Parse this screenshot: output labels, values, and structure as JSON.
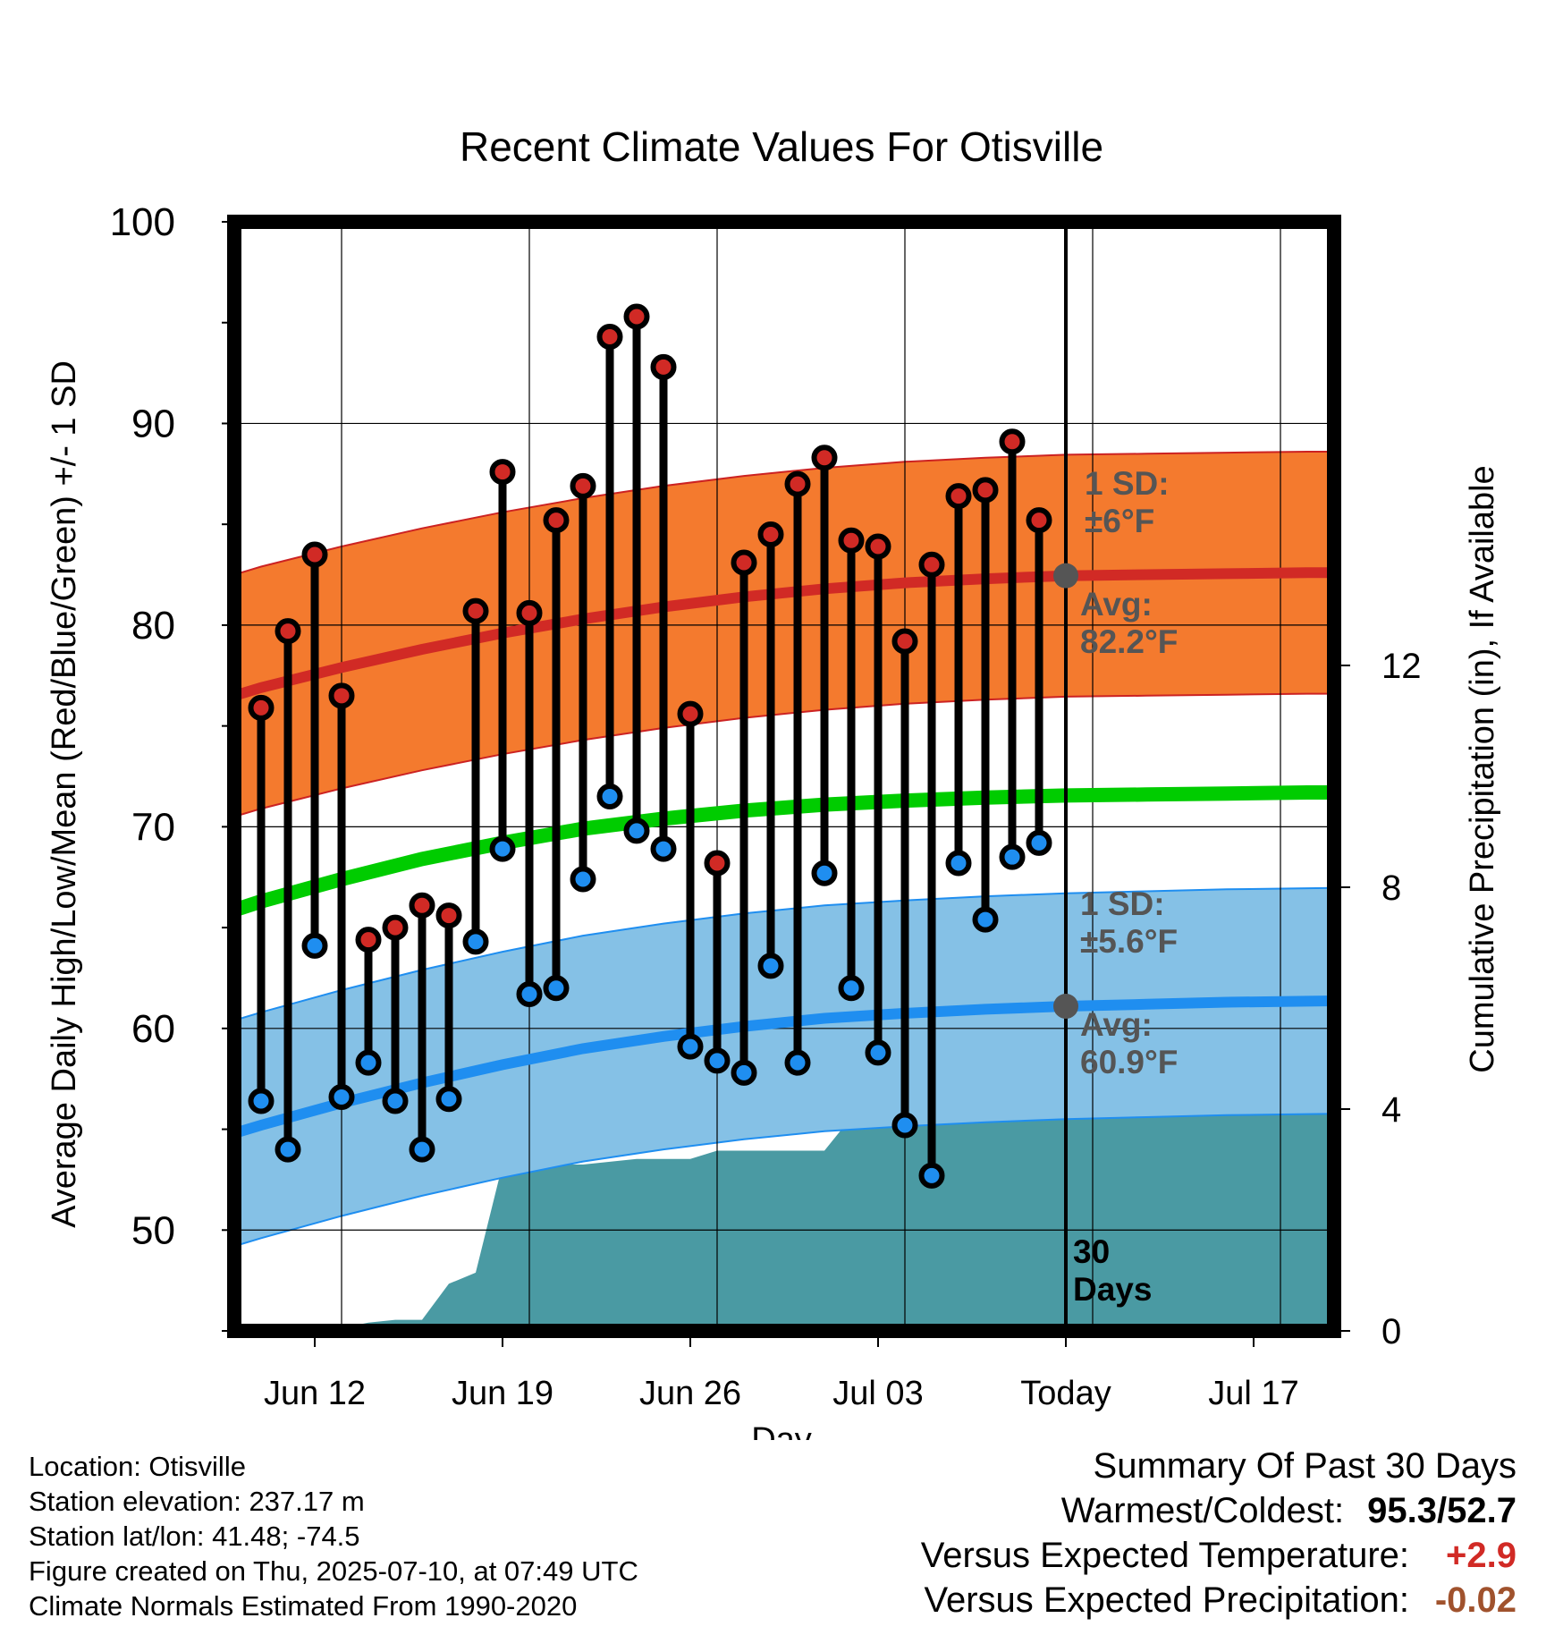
{
  "chart_data": {
    "type": "line",
    "title": "Recent Climate Values For Otisville",
    "xlabel": "Day",
    "ylabel": "Average Daily High/Low/Mean (Red/Blue/Green) +/- 1 SD",
    "y2label": "Cumulative Precipitation (in), If Available",
    "ylim": [
      45,
      100
    ],
    "y2lim": [
      0,
      16
    ],
    "yticks": [
      50,
      60,
      70,
      80,
      90,
      100
    ],
    "y2ticks": [
      0,
      4,
      8,
      12
    ],
    "xticks": [
      "Jun 12",
      "Jun 19",
      "Jun 26",
      "Jul 03",
      "Today",
      "Jul 17"
    ],
    "x_dates": [
      "Jun 09",
      "Jun 10",
      "Jun 11",
      "Jun 12",
      "Jun 13",
      "Jun 14",
      "Jun 15",
      "Jun 16",
      "Jun 17",
      "Jun 18",
      "Jun 19",
      "Jun 20",
      "Jun 21",
      "Jun 22",
      "Jun 23",
      "Jun 24",
      "Jun 25",
      "Jun 26",
      "Jun 27",
      "Jun 28",
      "Jun 29",
      "Jun 30",
      "Jul 01",
      "Jul 02",
      "Jul 03",
      "Jul 04",
      "Jul 05",
      "Jul 06",
      "Jul 07",
      "Jul 08",
      "Jul 09"
    ],
    "daily_high": [
      75.9,
      79.7,
      83.5,
      76.5,
      64.4,
      65.0,
      66.1,
      65.6,
      80.7,
      87.6,
      80.6,
      85.2,
      86.9,
      94.3,
      95.3,
      92.8,
      75.6,
      68.2,
      83.1,
      84.5,
      87.0,
      88.3,
      84.2,
      83.9,
      79.2,
      83.0,
      86.4,
      86.7,
      89.1,
      85.2
    ],
    "daily_low": [
      56.4,
      54.0,
      64.1,
      56.6,
      58.3,
      56.4,
      54.0,
      56.5,
      64.3,
      68.9,
      61.7,
      62.0,
      67.4,
      71.5,
      69.8,
      68.9,
      59.1,
      58.4,
      57.8,
      63.1,
      58.3,
      67.7,
      62.0,
      58.8,
      55.2,
      52.7,
      68.2,
      65.4,
      68.5,
      69.2
    ],
    "normal_x": [
      -3,
      0,
      3,
      6,
      9,
      12,
      15,
      18,
      21,
      24,
      27,
      30,
      33,
      36,
      39,
      41.8
    ],
    "normal_high": [
      75.7,
      76.9,
      77.9,
      78.8,
      79.6,
      80.3,
      80.9,
      81.4,
      81.8,
      82.1,
      82.3,
      82.45,
      82.5,
      82.55,
      82.6,
      82.6
    ],
    "normal_low": [
      54.0,
      55.2,
      56.3,
      57.3,
      58.2,
      59.0,
      59.6,
      60.1,
      60.5,
      60.75,
      60.95,
      61.1,
      61.2,
      61.3,
      61.35,
      61.4
    ],
    "normal_mean": [
      65.0,
      66.3,
      67.4,
      68.4,
      69.2,
      69.9,
      70.4,
      70.8,
      71.1,
      71.3,
      71.45,
      71.55,
      71.6,
      71.65,
      71.7,
      71.7
    ],
    "sd_high": 6.0,
    "sd_low": 5.6,
    "precip_x": [
      -3,
      0,
      1,
      2,
      3,
      4,
      5,
      6,
      7,
      8,
      9,
      10,
      11,
      12,
      13,
      14,
      15,
      16,
      17,
      18,
      19,
      20,
      21,
      22,
      23,
      24,
      25,
      26,
      27,
      28,
      29,
      30,
      41.8
    ],
    "precip": [
      0,
      0,
      0,
      0,
      0.05,
      0.15,
      0.2,
      0.2,
      0.85,
      1.05,
      3.0,
      3.0,
      3.0,
      3.0,
      3.05,
      3.1,
      3.1,
      3.1,
      3.25,
      3.25,
      3.25,
      3.25,
      3.25,
      3.85,
      3.85,
      4.2,
      4.2,
      4.2,
      4.2,
      4.2,
      4.2,
      4.2,
      4.2
    ],
    "today_index": 30,
    "grid": true,
    "colors": {
      "high_sd_band": "#f47a2e",
      "high_avg": "#d12a25",
      "low_sd_band": "#85c1e6",
      "low_avg": "#1f8ef0",
      "mean": "#00cc00",
      "precip": "#4a9aa3",
      "high_marker": "#d12a25",
      "low_marker": "#1f8ef0"
    },
    "annotations": {
      "high_sd": [
        "1 SD:",
        "±6°F"
      ],
      "high_avg": [
        "Avg:",
        "82.2°F"
      ],
      "low_sd": [
        "1 SD:",
        "±5.6°F"
      ],
      "low_avg": [
        "Avg:",
        "60.9°F"
      ],
      "days": [
        "30",
        "Days"
      ]
    }
  },
  "footer": {
    "location": "Location: Otisville",
    "elevation": "Station elevation: 237.17 m",
    "latlon": "Station lat/lon: 41.48; -74.5",
    "created": "Figure created on Thu, 2025-07-10, at 07:49 UTC",
    "normals": "Climate Normals Estimated From 1990-2020"
  },
  "summary": {
    "title": "Summary Of Past 30 Days",
    "warm_cold_label": "Warmest/Coldest:",
    "warmest": "95.3",
    "coldest": "52.7",
    "temp_label": "Versus Expected Temperature:",
    "temp_value": "+2.9",
    "temp_color": "#d12a25",
    "precip_label": "Versus Expected Precipitation:",
    "precip_value": "-0.02",
    "precip_color": "#a0522d"
  }
}
